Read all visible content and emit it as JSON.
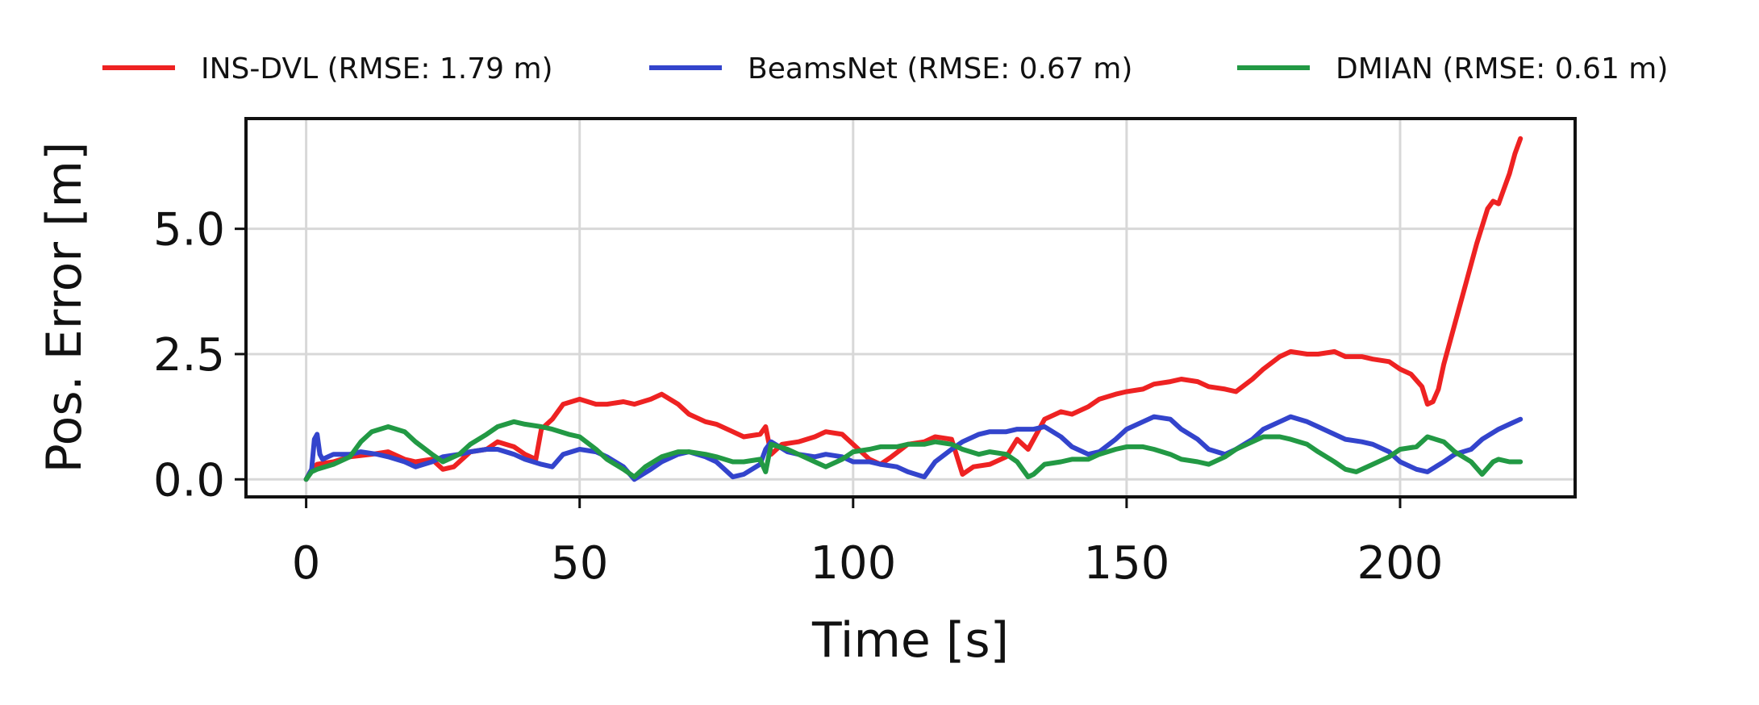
{
  "chart_data": {
    "type": "line",
    "title": "",
    "xlabel": "Time [s]",
    "ylabel": "Pos. Error [m]",
    "xlim": [
      -11,
      232
    ],
    "ylim": [
      -0.35,
      7.2
    ],
    "x_ticks": [
      0,
      50,
      100,
      150,
      200
    ],
    "y_ticks": [
      0.0,
      2.5,
      5.0
    ],
    "x_tick_labels": [
      "0",
      "50",
      "100",
      "150",
      "200"
    ],
    "y_tick_labels": [
      "0.0",
      "2.5",
      "5.0"
    ],
    "grid": true,
    "legend_position": "top-outside",
    "series": [
      {
        "name": "INS-DVL (RMSE: 1.79 m)",
        "color": "#ee2222",
        "x": [
          0,
          1,
          2,
          5,
          8,
          12,
          15,
          18,
          20,
          23,
          25,
          27,
          30,
          33,
          35,
          38,
          40,
          42,
          43,
          45,
          47,
          50,
          53,
          55,
          58,
          60,
          63,
          65,
          68,
          70,
          73,
          75,
          78,
          80,
          83,
          84,
          85,
          87,
          90,
          93,
          95,
          98,
          100,
          103,
          105,
          107,
          110,
          113,
          115,
          118,
          120,
          122,
          125,
          128,
          130,
          132,
          135,
          138,
          140,
          143,
          145,
          148,
          150,
          153,
          155,
          158,
          160,
          163,
          165,
          168,
          170,
          173,
          175,
          178,
          180,
          183,
          185,
          188,
          190,
          193,
          195,
          198,
          200,
          202,
          204,
          205,
          206,
          207,
          208,
          210,
          212,
          214,
          216,
          217,
          218,
          219,
          220,
          221,
          222
        ],
        "y": [
          0.0,
          0.2,
          0.3,
          0.35,
          0.45,
          0.5,
          0.55,
          0.4,
          0.35,
          0.4,
          0.2,
          0.25,
          0.55,
          0.6,
          0.75,
          0.65,
          0.5,
          0.4,
          1.0,
          1.2,
          1.5,
          1.6,
          1.5,
          1.5,
          1.55,
          1.5,
          1.6,
          1.7,
          1.5,
          1.3,
          1.15,
          1.1,
          0.95,
          0.85,
          0.9,
          1.05,
          0.5,
          0.7,
          0.75,
          0.85,
          0.95,
          0.9,
          0.7,
          0.4,
          0.3,
          0.45,
          0.7,
          0.75,
          0.85,
          0.8,
          0.1,
          0.25,
          0.3,
          0.45,
          0.8,
          0.6,
          1.2,
          1.35,
          1.3,
          1.45,
          1.6,
          1.7,
          1.75,
          1.8,
          1.9,
          1.95,
          2.0,
          1.95,
          1.85,
          1.8,
          1.75,
          2.0,
          2.2,
          2.45,
          2.55,
          2.5,
          2.5,
          2.55,
          2.45,
          2.45,
          2.4,
          2.35,
          2.2,
          2.1,
          1.85,
          1.5,
          1.55,
          1.8,
          2.3,
          3.1,
          3.9,
          4.7,
          5.4,
          5.55,
          5.5,
          5.8,
          6.1,
          6.5,
          6.8
        ]
      },
      {
        "name": "BeamsNet (RMSE: 0.67 m)",
        "color": "#3344cc",
        "x": [
          0,
          1,
          1.5,
          2,
          2.5,
          3,
          5,
          8,
          10,
          13,
          15,
          18,
          20,
          23,
          25,
          28,
          30,
          33,
          35,
          38,
          40,
          43,
          45,
          47,
          50,
          53,
          55,
          58,
          60,
          63,
          65,
          68,
          70,
          73,
          75,
          78,
          80,
          83,
          84,
          85,
          88,
          90,
          93,
          95,
          98,
          100,
          103,
          105,
          108,
          110,
          113,
          115,
          118,
          120,
          123,
          125,
          128,
          130,
          133,
          135,
          138,
          140,
          143,
          145,
          148,
          150,
          153,
          155,
          158,
          160,
          163,
          165,
          168,
          170,
          173,
          175,
          178,
          180,
          183,
          185,
          188,
          190,
          193,
          195,
          198,
          200,
          203,
          205,
          208,
          210,
          213,
          215,
          218,
          220,
          222
        ],
        "y": [
          0.0,
          0.2,
          0.8,
          0.9,
          0.5,
          0.4,
          0.5,
          0.5,
          0.55,
          0.5,
          0.45,
          0.35,
          0.25,
          0.35,
          0.45,
          0.5,
          0.55,
          0.6,
          0.6,
          0.5,
          0.4,
          0.3,
          0.25,
          0.5,
          0.6,
          0.55,
          0.45,
          0.25,
          0.0,
          0.2,
          0.35,
          0.5,
          0.55,
          0.45,
          0.35,
          0.05,
          0.1,
          0.3,
          0.6,
          0.75,
          0.55,
          0.5,
          0.45,
          0.5,
          0.45,
          0.35,
          0.35,
          0.3,
          0.25,
          0.15,
          0.05,
          0.35,
          0.6,
          0.75,
          0.9,
          0.95,
          0.95,
          1.0,
          1.0,
          1.05,
          0.85,
          0.65,
          0.5,
          0.55,
          0.8,
          1.0,
          1.15,
          1.25,
          1.2,
          1.0,
          0.8,
          0.6,
          0.5,
          0.6,
          0.8,
          1.0,
          1.15,
          1.25,
          1.15,
          1.05,
          0.9,
          0.8,
          0.75,
          0.7,
          0.55,
          0.35,
          0.2,
          0.15,
          0.35,
          0.5,
          0.6,
          0.8,
          1.0,
          1.1,
          1.2
        ]
      },
      {
        "name": "DMIAN (RMSE: 0.61 m)",
        "color": "#229944",
        "x": [
          0,
          1,
          2,
          5,
          8,
          10,
          12,
          15,
          18,
          20,
          23,
          25,
          28,
          30,
          33,
          35,
          38,
          40,
          43,
          45,
          48,
          50,
          53,
          55,
          58,
          60,
          62,
          65,
          68,
          70,
          73,
          75,
          78,
          80,
          83,
          84,
          85,
          88,
          90,
          93,
          95,
          98,
          100,
          103,
          105,
          108,
          110,
          113,
          115,
          118,
          120,
          123,
          125,
          128,
          130,
          132,
          133,
          135,
          138,
          140,
          143,
          145,
          148,
          150,
          153,
          155,
          158,
          160,
          163,
          165,
          168,
          170,
          173,
          175,
          178,
          180,
          183,
          185,
          188,
          190,
          192,
          195,
          198,
          200,
          203,
          205,
          208,
          210,
          213,
          215,
          217,
          218,
          220,
          222
        ],
        "y": [
          0.0,
          0.15,
          0.2,
          0.3,
          0.45,
          0.75,
          0.95,
          1.05,
          0.95,
          0.75,
          0.5,
          0.35,
          0.5,
          0.7,
          0.9,
          1.05,
          1.15,
          1.1,
          1.05,
          1.0,
          0.9,
          0.85,
          0.6,
          0.4,
          0.2,
          0.05,
          0.25,
          0.45,
          0.55,
          0.55,
          0.5,
          0.45,
          0.35,
          0.35,
          0.4,
          0.15,
          0.7,
          0.6,
          0.5,
          0.35,
          0.25,
          0.4,
          0.55,
          0.6,
          0.65,
          0.65,
          0.7,
          0.7,
          0.75,
          0.7,
          0.6,
          0.5,
          0.55,
          0.5,
          0.35,
          0.05,
          0.1,
          0.3,
          0.35,
          0.4,
          0.4,
          0.5,
          0.6,
          0.65,
          0.65,
          0.6,
          0.5,
          0.4,
          0.35,
          0.3,
          0.45,
          0.6,
          0.75,
          0.85,
          0.85,
          0.8,
          0.7,
          0.55,
          0.35,
          0.2,
          0.15,
          0.3,
          0.45,
          0.6,
          0.65,
          0.85,
          0.75,
          0.55,
          0.35,
          0.1,
          0.35,
          0.4,
          0.35,
          0.35
        ]
      }
    ]
  }
}
